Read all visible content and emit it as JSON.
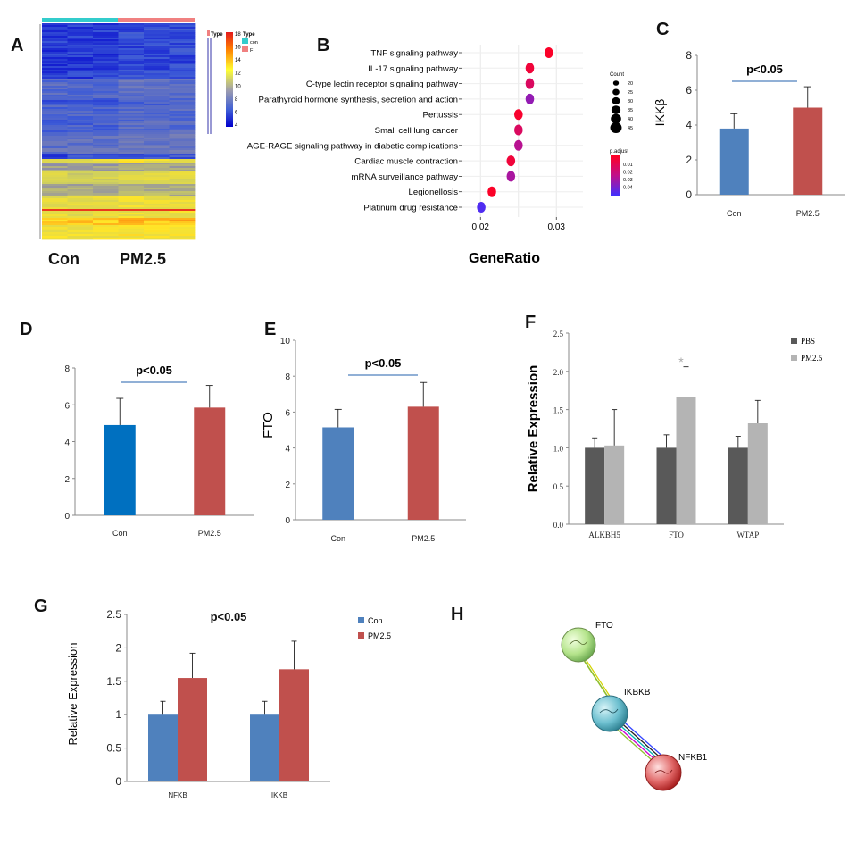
{
  "panel_letters": [
    "A",
    "B",
    "C",
    "D",
    "E",
    "F",
    "G",
    "H"
  ],
  "colors": {
    "con_blue": "#4f81bd",
    "pm_red": "#c0504d",
    "d_blue": "#0070c0",
    "pbs_gray": "#595959",
    "pm_gray": "#b4b4b4",
    "sig_line": "#4f81bd"
  },
  "chart_data": [
    {
      "panel": "A",
      "type": "heatmap",
      "group_labels": [
        "Con",
        "PM2.5"
      ],
      "annotation_title": "Type",
      "annotation_legend_title": "Type",
      "annotation_levels": [
        {
          "label": "con",
          "color": "#33cccc"
        },
        {
          "label": "F",
          "color": "#f08080"
        }
      ],
      "colorbar_ticks": [
        "18",
        "16",
        "14",
        "12",
        "10",
        "8",
        "6",
        "4"
      ]
    },
    {
      "panel": "B",
      "type": "scatter",
      "pathways": [
        "TNF signaling pathway",
        "IL-17 signaling pathway",
        "C-type lectin receptor signaling pathway",
        "Parathyroid hormone synthesis, secretion and action",
        "Pertussis",
        "Small cell lung cancer",
        "AGE-RAGE signaling pathway in diabetic complications",
        "Cardiac muscle contraction",
        "mRNA surveillance pathway",
        "Legionellosis",
        "Platinum drug resistance"
      ],
      "gene_ratio": [
        0.029,
        0.0265,
        0.0265,
        0.0265,
        0.025,
        0.025,
        0.025,
        0.024,
        0.024,
        0.0215,
        0.0201
      ],
      "p_adjust": [
        0.003,
        0.006,
        0.012,
        0.025,
        0.004,
        0.012,
        0.02,
        0.006,
        0.022,
        0.003,
        0.034
      ],
      "xlim": [
        0.0175,
        0.0335
      ],
      "xticks": [
        "0.02",
        "0.03"
      ],
      "xlabel": "GeneRatio",
      "legend_count_title": "Count",
      "legend_count_values": [
        "20",
        "25",
        "30",
        "35",
        "40",
        "45"
      ],
      "legend_padj_title": "p.adjust",
      "legend_padj_ticks": [
        "0.01",
        "0.02",
        "0.03",
        "0.04"
      ]
    },
    {
      "panel": "C",
      "type": "bar",
      "categories": [
        "Con",
        "PM2.5"
      ],
      "values": [
        3.8,
        5.0
      ],
      "errors": [
        0.85,
        1.2
      ],
      "ylabel": "IKKβ",
      "ylim": [
        0,
        8
      ],
      "yticks": [
        "0",
        "2",
        "4",
        "6",
        "8"
      ],
      "annotation": "p<0.05"
    },
    {
      "panel": "D",
      "type": "bar",
      "categories": [
        "Con",
        "PM2.5"
      ],
      "values": [
        4.9,
        5.85
      ],
      "errors": [
        1.45,
        1.2
      ],
      "ylabel": "",
      "ylim": [
        0,
        8
      ],
      "yticks": [
        "0",
        "2",
        "4",
        "6",
        "8"
      ],
      "annotation": "p<0.05"
    },
    {
      "panel": "E",
      "type": "bar",
      "categories": [
        "Con",
        "PM2.5"
      ],
      "values": [
        5.15,
        6.3
      ],
      "errors": [
        1.0,
        1.35
      ],
      "ylabel": "FTO",
      "ylim": [
        0,
        10
      ],
      "yticks": [
        "0",
        "2",
        "4",
        "6",
        "8",
        "10"
      ],
      "annotation": "p<0.05"
    },
    {
      "panel": "F",
      "type": "bar",
      "categories": [
        "ALKBH5",
        "FTO",
        "WTAP"
      ],
      "series": [
        {
          "name": "PBS",
          "values": [
            1.0,
            1.0,
            1.0
          ],
          "errors": [
            0.13,
            0.17,
            0.15
          ]
        },
        {
          "name": "PM2.5",
          "values": [
            1.03,
            1.66,
            1.32
          ],
          "errors": [
            0.47,
            0.4,
            0.3
          ]
        }
      ],
      "ylabel": "Relative Expression",
      "ylim": [
        0,
        2.5
      ],
      "yticks": [
        "0.0",
        "0.5",
        "1.0",
        "1.5",
        "2.0",
        "2.5"
      ],
      "annotation": "*"
    },
    {
      "panel": "G",
      "type": "bar",
      "categories": [
        "NFKB",
        "IKKB"
      ],
      "series": [
        {
          "name": "Con",
          "values": [
            1.0,
            1.0
          ],
          "errors": [
            0.2,
            0.2
          ]
        },
        {
          "name": "PM2.5",
          "values": [
            1.55,
            1.68
          ],
          "errors": [
            0.37,
            0.42
          ]
        }
      ],
      "ylabel": "Relative Expression",
      "ylim": [
        0,
        2.5
      ],
      "yticks": [
        "0",
        "0.5",
        "1",
        "1.5",
        "2",
        "2.5"
      ],
      "annotation": "p<0.05"
    }
  ],
  "network": {
    "nodes": [
      "FTO",
      "IKBKB",
      "NFKB1"
    ]
  }
}
